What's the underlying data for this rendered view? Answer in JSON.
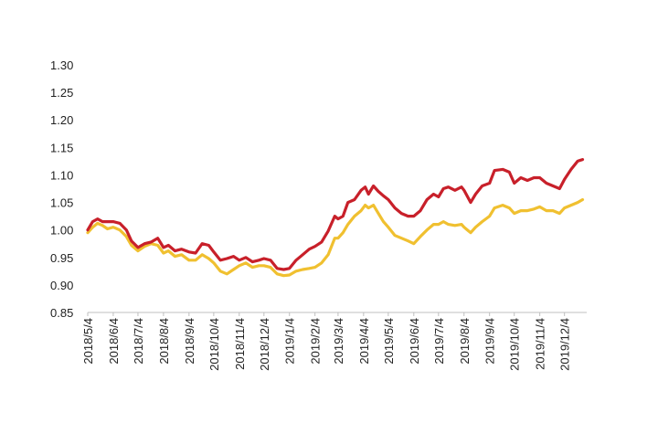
{
  "chart_data": {
    "type": "line",
    "title": "",
    "xlabel": "",
    "ylabel": "",
    "ylim": [
      0.85,
      1.3
    ],
    "grid": false,
    "legend": "none",
    "y_ticks": [
      "0.85",
      "0.90",
      "0.95",
      "1.00",
      "1.05",
      "1.10",
      "1.15",
      "1.20",
      "1.25",
      "1.30"
    ],
    "x_ticks": [
      "2018/5/4",
      "2018/6/4",
      "2018/7/4",
      "2018/8/4",
      "2018/9/4",
      "2018/10/4",
      "2018/11/4",
      "2018/12/4",
      "2019/1/4",
      "2019/2/4",
      "2019/3/4",
      "2019/4/4",
      "2019/5/4",
      "2019/6/4",
      "2019/7/4",
      "2019/8/4",
      "2019/9/4",
      "2019/10/4",
      "2019/11/4",
      "2019/12/4"
    ],
    "series": [
      {
        "color": "#c8202a",
        "points": [
          [
            "2018/5/4",
            1.0
          ],
          [
            "2018/5/10",
            1.015
          ],
          [
            "2018/5/16",
            1.02
          ],
          [
            "2018/5/22",
            1.015
          ],
          [
            "2018/5/28",
            1.015
          ],
          [
            "2018/6/4",
            1.015
          ],
          [
            "2018/6/12",
            1.012
          ],
          [
            "2018/6/20",
            1.0
          ],
          [
            "2018/6/26",
            0.98
          ],
          [
            "2018/7/4",
            0.968
          ],
          [
            "2018/7/12",
            0.975
          ],
          [
            "2018/7/20",
            0.978
          ],
          [
            "2018/7/28",
            0.985
          ],
          [
            "2018/8/4",
            0.968
          ],
          [
            "2018/8/10",
            0.972
          ],
          [
            "2018/8/18",
            0.962
          ],
          [
            "2018/8/26",
            0.965
          ],
          [
            "2018/9/4",
            0.96
          ],
          [
            "2018/9/12",
            0.958
          ],
          [
            "2018/9/20",
            0.975
          ],
          [
            "2018/9/28",
            0.972
          ],
          [
            "2018/10/4",
            0.96
          ],
          [
            "2018/10/12",
            0.945
          ],
          [
            "2018/10/20",
            0.948
          ],
          [
            "2018/10/28",
            0.952
          ],
          [
            "2018/11/4",
            0.945
          ],
          [
            "2018/11/12",
            0.95
          ],
          [
            "2018/11/20",
            0.942
          ],
          [
            "2018/11/28",
            0.945
          ],
          [
            "2018/12/4",
            0.948
          ],
          [
            "2018/12/12",
            0.945
          ],
          [
            "2018/12/20",
            0.93
          ],
          [
            "2018/12/28",
            0.928
          ],
          [
            "2019/1/4",
            0.93
          ],
          [
            "2019/1/12",
            0.945
          ],
          [
            "2019/1/20",
            0.955
          ],
          [
            "2019/1/28",
            0.965
          ],
          [
            "2019/2/4",
            0.97
          ],
          [
            "2019/2/12",
            0.978
          ],
          [
            "2019/2/20",
            0.998
          ],
          [
            "2019/2/28",
            1.025
          ],
          [
            "2019/3/4",
            1.02
          ],
          [
            "2019/3/10",
            1.025
          ],
          [
            "2019/3/16",
            1.05
          ],
          [
            "2019/3/24",
            1.055
          ],
          [
            "2019/4/1",
            1.072
          ],
          [
            "2019/4/6",
            1.078
          ],
          [
            "2019/4/10",
            1.065
          ],
          [
            "2019/4/16",
            1.08
          ],
          [
            "2019/4/22",
            1.07
          ],
          [
            "2019/4/28",
            1.062
          ],
          [
            "2019/5/4",
            1.055
          ],
          [
            "2019/5/12",
            1.04
          ],
          [
            "2019/5/20",
            1.03
          ],
          [
            "2019/5/28",
            1.025
          ],
          [
            "2019/6/4",
            1.025
          ],
          [
            "2019/6/12",
            1.035
          ],
          [
            "2019/6/20",
            1.055
          ],
          [
            "2019/6/28",
            1.065
          ],
          [
            "2019/7/4",
            1.06
          ],
          [
            "2019/7/10",
            1.075
          ],
          [
            "2019/7/16",
            1.078
          ],
          [
            "2019/7/24",
            1.072
          ],
          [
            "2019/8/1",
            1.078
          ],
          [
            "2019/8/4",
            1.072
          ],
          [
            "2019/8/12",
            1.05
          ],
          [
            "2019/8/18",
            1.065
          ],
          [
            "2019/8/26",
            1.08
          ],
          [
            "2019/9/4",
            1.085
          ],
          [
            "2019/9/10",
            1.108
          ],
          [
            "2019/9/20",
            1.11
          ],
          [
            "2019/9/28",
            1.105
          ],
          [
            "2019/10/4",
            1.085
          ],
          [
            "2019/10/12",
            1.095
          ],
          [
            "2019/10/20",
            1.09
          ],
          [
            "2019/10/28",
            1.095
          ],
          [
            "2019/11/4",
            1.095
          ],
          [
            "2019/11/12",
            1.085
          ],
          [
            "2019/11/20",
            1.08
          ],
          [
            "2019/11/28",
            1.075
          ],
          [
            "2019/12/4",
            1.092
          ],
          [
            "2019/12/12",
            1.11
          ],
          [
            "2019/12/20",
            1.125
          ],
          [
            "2019/12/26",
            1.128
          ]
        ]
      },
      {
        "color": "#f0c030",
        "points": [
          [
            "2018/5/4",
            0.995
          ],
          [
            "2018/5/10",
            1.005
          ],
          [
            "2018/5/16",
            1.012
          ],
          [
            "2018/5/22",
            1.008
          ],
          [
            "2018/5/28",
            1.002
          ],
          [
            "2018/6/4",
            1.005
          ],
          [
            "2018/6/12",
            1.0
          ],
          [
            "2018/6/20",
            0.988
          ],
          [
            "2018/6/26",
            0.972
          ],
          [
            "2018/7/4",
            0.962
          ],
          [
            "2018/7/12",
            0.97
          ],
          [
            "2018/7/20",
            0.975
          ],
          [
            "2018/7/28",
            0.972
          ],
          [
            "2018/8/4",
            0.958
          ],
          [
            "2018/8/10",
            0.962
          ],
          [
            "2018/8/18",
            0.952
          ],
          [
            "2018/8/26",
            0.955
          ],
          [
            "2018/9/4",
            0.945
          ],
          [
            "2018/9/12",
            0.945
          ],
          [
            "2018/9/20",
            0.955
          ],
          [
            "2018/9/28",
            0.948
          ],
          [
            "2018/10/4",
            0.94
          ],
          [
            "2018/10/12",
            0.925
          ],
          [
            "2018/10/20",
            0.92
          ],
          [
            "2018/10/28",
            0.928
          ],
          [
            "2018/11/4",
            0.935
          ],
          [
            "2018/11/12",
            0.94
          ],
          [
            "2018/11/20",
            0.932
          ],
          [
            "2018/11/28",
            0.935
          ],
          [
            "2018/12/4",
            0.935
          ],
          [
            "2018/12/12",
            0.932
          ],
          [
            "2018/12/20",
            0.92
          ],
          [
            "2018/12/28",
            0.917
          ],
          [
            "2019/1/4",
            0.918
          ],
          [
            "2019/1/12",
            0.925
          ],
          [
            "2019/1/20",
            0.928
          ],
          [
            "2019/1/28",
            0.93
          ],
          [
            "2019/2/4",
            0.932
          ],
          [
            "2019/2/12",
            0.94
          ],
          [
            "2019/2/20",
            0.955
          ],
          [
            "2019/2/28",
            0.985
          ],
          [
            "2019/3/4",
            0.985
          ],
          [
            "2019/3/10",
            0.995
          ],
          [
            "2019/3/16",
            1.01
          ],
          [
            "2019/3/24",
            1.025
          ],
          [
            "2019/4/1",
            1.035
          ],
          [
            "2019/4/6",
            1.045
          ],
          [
            "2019/4/10",
            1.04
          ],
          [
            "2019/4/16",
            1.045
          ],
          [
            "2019/4/22",
            1.03
          ],
          [
            "2019/4/28",
            1.015
          ],
          [
            "2019/5/4",
            1.005
          ],
          [
            "2019/5/12",
            0.99
          ],
          [
            "2019/5/20",
            0.985
          ],
          [
            "2019/5/28",
            0.98
          ],
          [
            "2019/6/4",
            0.975
          ],
          [
            "2019/6/12",
            0.988
          ],
          [
            "2019/6/20",
            1.0
          ],
          [
            "2019/6/28",
            1.01
          ],
          [
            "2019/7/4",
            1.01
          ],
          [
            "2019/7/10",
            1.015
          ],
          [
            "2019/7/16",
            1.01
          ],
          [
            "2019/7/24",
            1.008
          ],
          [
            "2019/8/1",
            1.01
          ],
          [
            "2019/8/4",
            1.005
          ],
          [
            "2019/8/12",
            0.995
          ],
          [
            "2019/8/18",
            1.005
          ],
          [
            "2019/8/26",
            1.015
          ],
          [
            "2019/9/4",
            1.025
          ],
          [
            "2019/9/10",
            1.04
          ],
          [
            "2019/9/20",
            1.045
          ],
          [
            "2019/9/28",
            1.04
          ],
          [
            "2019/10/4",
            1.03
          ],
          [
            "2019/10/12",
            1.035
          ],
          [
            "2019/10/20",
            1.035
          ],
          [
            "2019/10/28",
            1.038
          ],
          [
            "2019/11/4",
            1.042
          ],
          [
            "2019/11/12",
            1.035
          ],
          [
            "2019/11/20",
            1.035
          ],
          [
            "2019/11/28",
            1.03
          ],
          [
            "2019/12/4",
            1.04
          ],
          [
            "2019/12/12",
            1.045
          ],
          [
            "2019/12/20",
            1.05
          ],
          [
            "2019/12/26",
            1.055
          ]
        ]
      }
    ]
  }
}
